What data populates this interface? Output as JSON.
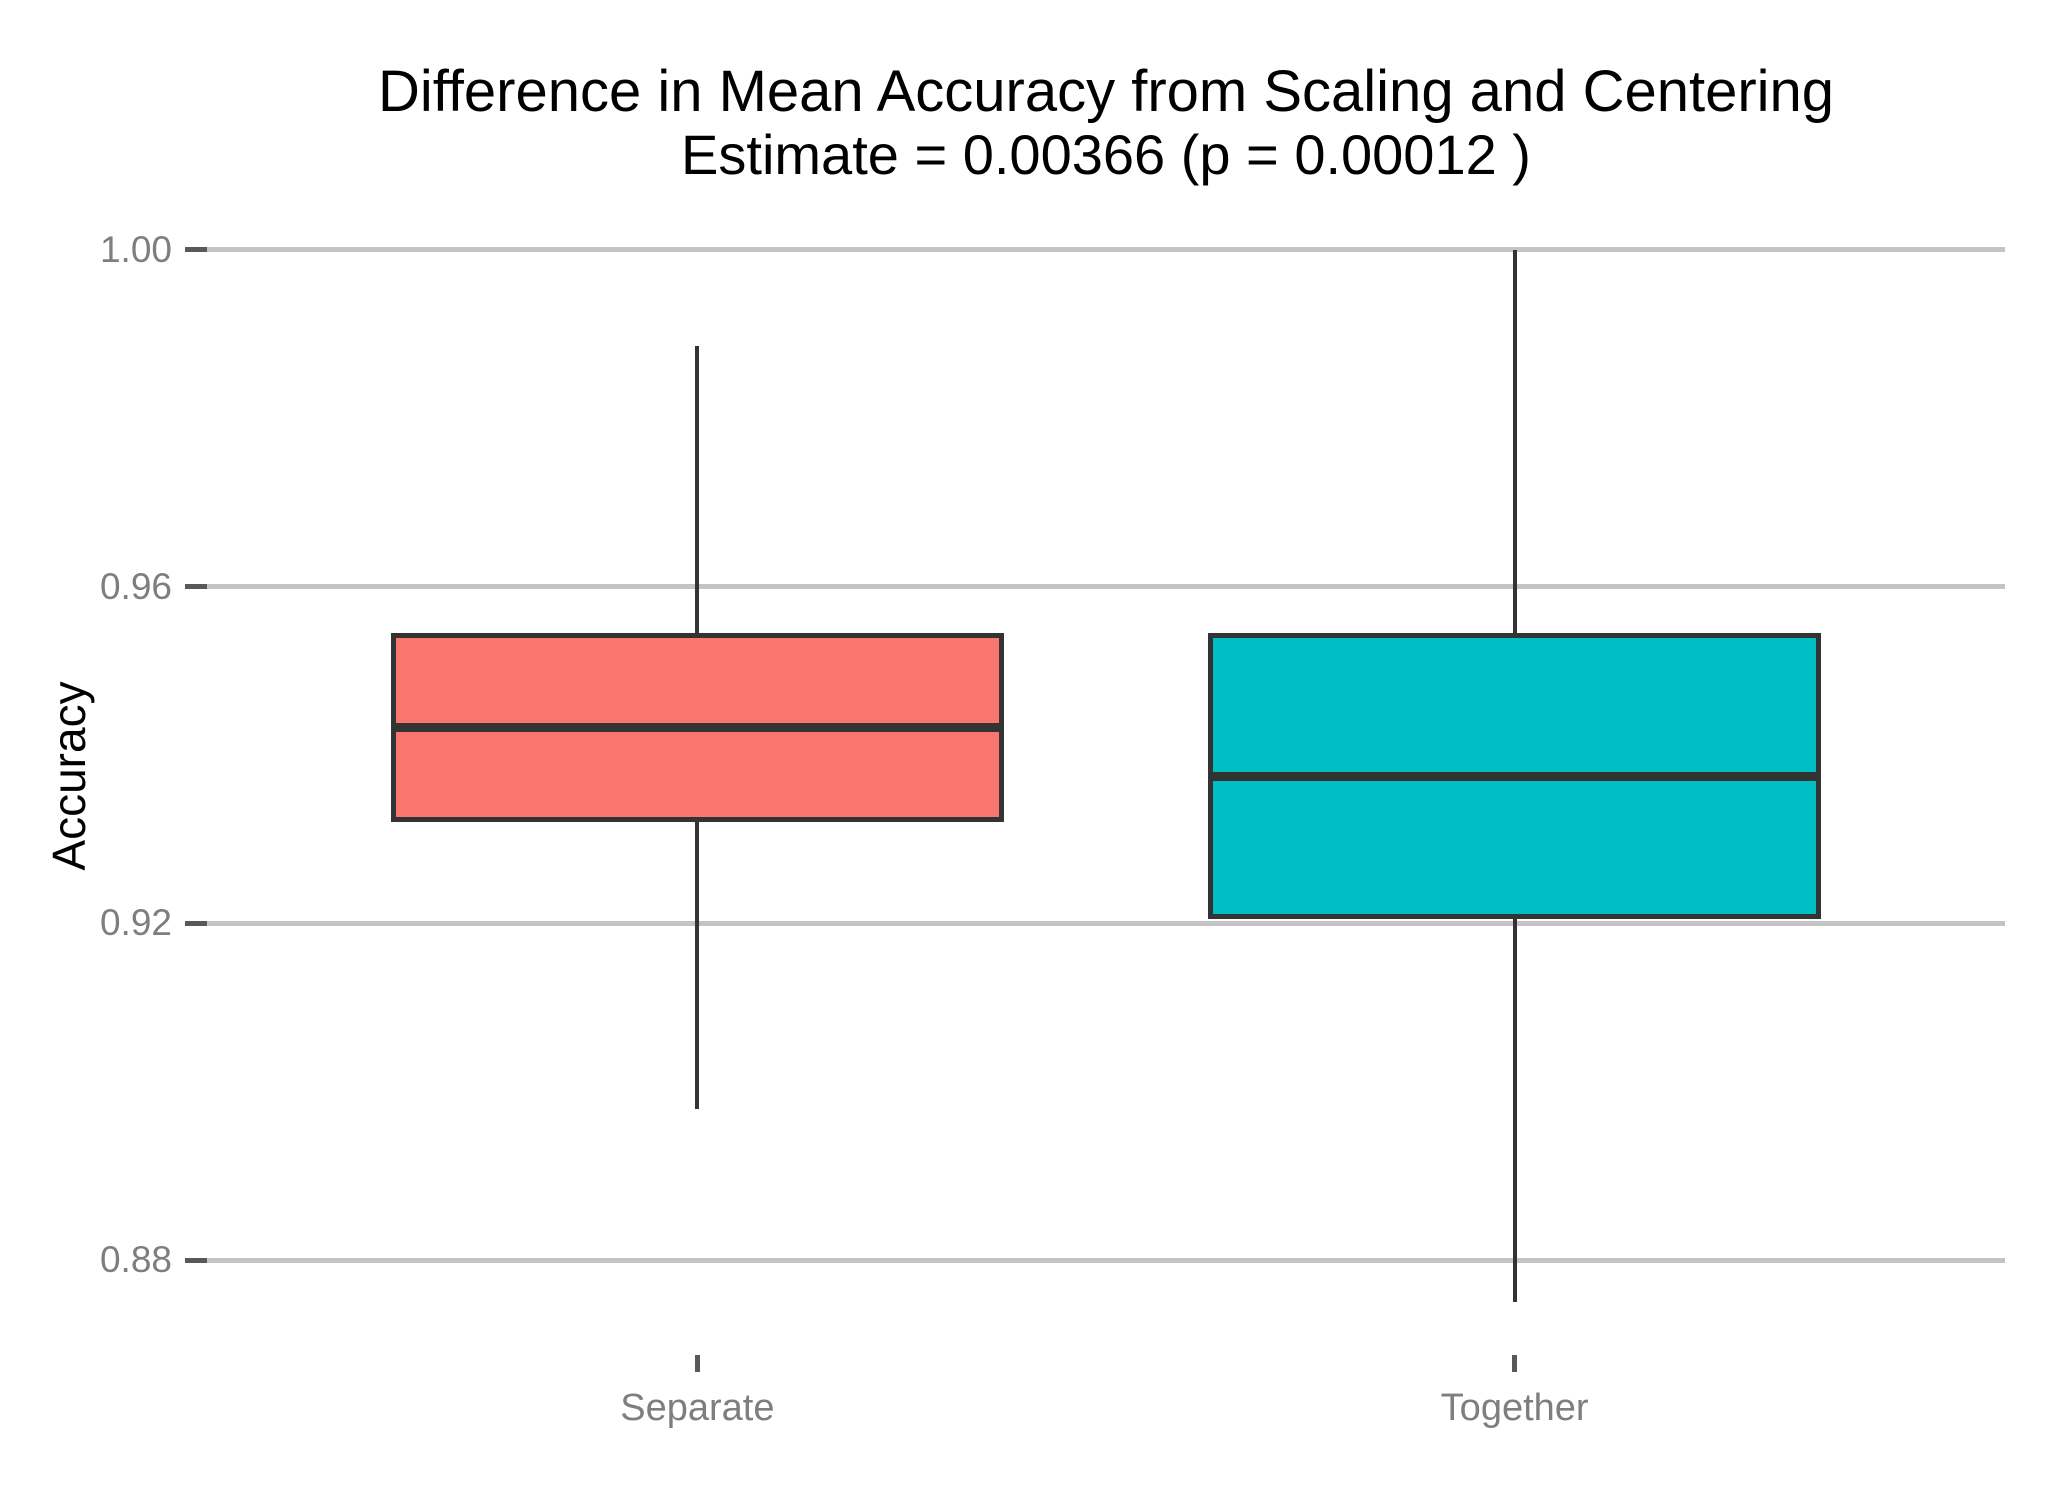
{
  "header": {
    "title": "Difference in Mean Accuracy from Scaling and Centering",
    "subtitle": "Estimate = 0.00366 (p = 0.00012 )"
  },
  "chart_data": {
    "type": "boxplot",
    "title": "Difference in Mean Accuracy from Scaling and Centering",
    "subtitle": "Estimate = 0.00366 (p = 0.00012 )",
    "xlabel": "",
    "ylabel": "Accuracy",
    "categories": [
      "Separate",
      "Together"
    ],
    "series": [
      {
        "name": "Separate",
        "fill": "#F8766D",
        "whisker_low": 0.898,
        "q1": 0.932,
        "median": 0.9433,
        "q3": 0.9545,
        "whisker_high": 0.9885
      },
      {
        "name": "Together",
        "fill": "#00BFC4",
        "whisker_low": 0.875,
        "q1": 0.9205,
        "median": 0.9375,
        "q3": 0.9545,
        "whisker_high": 1.0
      }
    ],
    "yticks": [
      1.0,
      0.96,
      0.92,
      0.88
    ],
    "ytick_labels": [
      "1.00",
      "0.96",
      "0.92",
      "0.88"
    ],
    "ylim": [
      0.86875,
      1.00625
    ],
    "grid": "horizontal-major-only",
    "legend": "none",
    "colors": {
      "gridline": "#C4C4C4",
      "tick_mark": "#595959",
      "axis_text": "#7E7E7E",
      "axis_title": "#000000",
      "box_border": "#333333",
      "background": "#FFFFFF"
    }
  }
}
